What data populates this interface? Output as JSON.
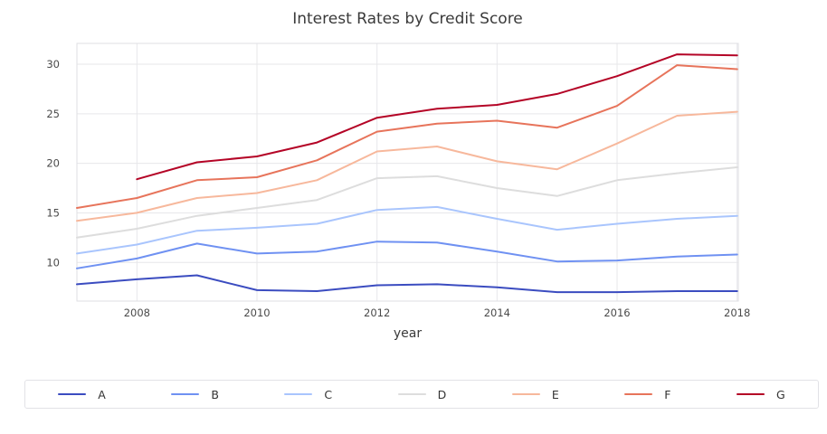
{
  "chart_data": {
    "type": "line",
    "title": "Interest Rates by Credit Score",
    "xlabel": "year",
    "ylabel": "",
    "x": [
      2007,
      2008,
      2009,
      2010,
      2011,
      2012,
      2013,
      2014,
      2015,
      2016,
      2017,
      2018
    ],
    "x_ticks": [
      2008,
      2010,
      2012,
      2014,
      2016,
      2018
    ],
    "y_ticks": [
      10,
      15,
      20,
      25,
      30
    ],
    "xlim": [
      2007,
      2018.02
    ],
    "ylim": [
      6.1,
      32.1
    ],
    "grid": true,
    "legend_position": "bottom",
    "series": [
      {
        "name": "A",
        "color": "#3b4cc0",
        "values": [
          7.8,
          8.3,
          8.7,
          7.2,
          7.1,
          7.7,
          7.8,
          7.5,
          7.0,
          7.0,
          7.1,
          7.1
        ]
      },
      {
        "name": "B",
        "color": "#6f91f2",
        "values": [
          9.4,
          10.4,
          11.9,
          10.9,
          11.1,
          12.1,
          12.0,
          11.1,
          10.1,
          10.2,
          10.6,
          10.8
        ]
      },
      {
        "name": "C",
        "color": "#a9c5fd",
        "values": [
          10.9,
          11.8,
          13.2,
          13.5,
          13.9,
          15.3,
          15.6,
          14.4,
          13.3,
          13.9,
          14.4,
          14.7
        ]
      },
      {
        "name": "D",
        "color": "#dddddd",
        "values": [
          12.5,
          13.4,
          14.7,
          15.5,
          16.3,
          18.5,
          18.7,
          17.5,
          16.7,
          18.3,
          19.0,
          19.6
        ]
      },
      {
        "name": "E",
        "color": "#f7b89c",
        "values": [
          14.2,
          15.0,
          16.5,
          17.0,
          18.3,
          21.2,
          21.7,
          20.2,
          19.4,
          22.0,
          24.8,
          25.2
        ]
      },
      {
        "name": "F",
        "color": "#e7745b",
        "values": [
          15.5,
          16.5,
          18.3,
          18.6,
          20.3,
          23.2,
          24.0,
          24.3,
          23.6,
          25.8,
          29.9,
          29.5
        ]
      },
      {
        "name": "G",
        "color": "#b40426",
        "values": [
          null,
          18.4,
          20.1,
          20.7,
          22.1,
          24.6,
          25.5,
          25.9,
          27.0,
          28.8,
          31.0,
          30.9
        ]
      }
    ],
    "style": {
      "grid_color": "#e7e7ea",
      "spine_color": "#dfdfe3",
      "tick_label_color": "#4a4a4a"
    }
  }
}
